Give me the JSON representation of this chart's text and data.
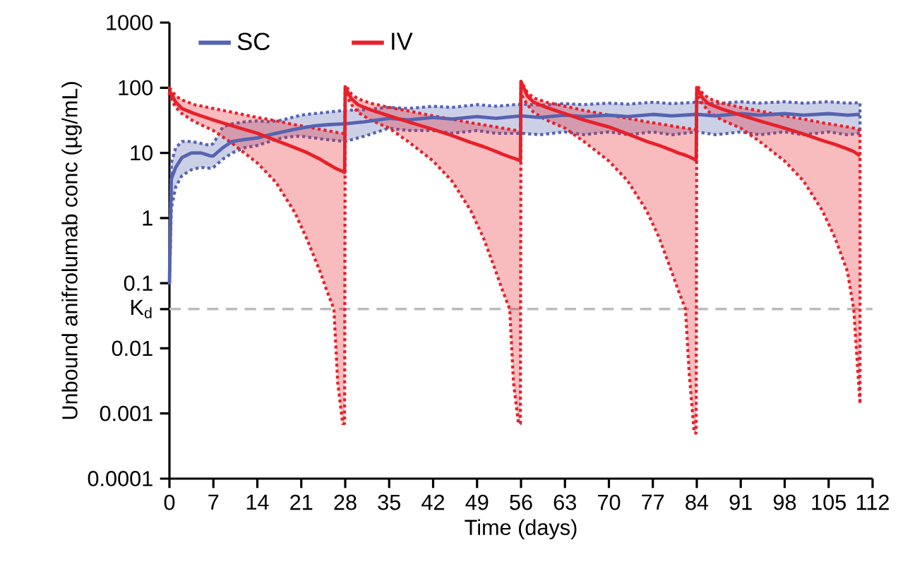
{
  "chart_data": {
    "type": "line",
    "xlabel": "Time (days)",
    "ylabel": "Unbound anifrolumab conc (µg/mL)",
    "xlim": [
      0,
      112
    ],
    "xticks": [
      0,
      7,
      14,
      21,
      28,
      35,
      42,
      49,
      56,
      63,
      70,
      77,
      84,
      91,
      98,
      105,
      112
    ],
    "ylim": [
      0.0001,
      1000
    ],
    "yticks": [
      0.0001,
      0.001,
      0.01,
      {
        "value": 0.04,
        "label": "K$_{d}$"
      },
      0.1,
      1,
      10,
      100,
      1000
    ],
    "log": "y",
    "grid": false,
    "legend": "top left",
    "marker": "none",
    "line_style": "solid",
    "ref_lines": [
      {
        "axis": "y",
        "value": 0.04,
        "color": "#bbbbbb",
        "line_style": "dashed"
      }
    ],
    "series": [
      {
        "name": "SC",
        "color": "#5663b0",
        "x": [
          0,
          0.3,
          1,
          2,
          3.5,
          5,
          6.5,
          7,
          8.5,
          10,
          12,
          14,
          16,
          18,
          20,
          21,
          23,
          25,
          28,
          31,
          35,
          38,
          42,
          45,
          49,
          52,
          56,
          59,
          63,
          66,
          70,
          73,
          77,
          80,
          84,
          87,
          91,
          94,
          98,
          101,
          105,
          108,
          110
        ],
        "values": [
          0.1,
          4,
          6,
          8.5,
          10,
          10,
          9,
          9,
          12,
          15,
          16,
          17,
          19,
          21,
          23,
          24,
          26,
          27,
          28,
          30,
          34,
          32,
          35,
          33,
          36,
          34,
          37,
          35,
          38,
          36,
          38,
          36,
          39,
          37,
          39,
          37,
          40,
          38,
          40,
          38,
          40,
          38,
          39
        ],
        "lower": [
          0.1,
          1.4,
          3,
          4.5,
          5.5,
          6,
          5.8,
          6,
          8,
          10,
          12,
          13,
          15,
          17,
          18,
          18,
          17,
          16,
          15,
          18,
          24,
          22,
          22,
          20,
          22,
          20,
          20,
          19,
          21,
          19,
          21,
          19,
          21,
          19,
          21,
          19,
          21,
          19,
          21,
          19,
          21,
          19,
          20
        ],
        "upper": [
          0.1,
          7,
          12,
          15,
          15,
          14,
          13,
          14,
          25,
          28,
          30,
          31,
          30,
          32,
          36,
          38,
          40,
          42,
          45,
          46,
          50,
          48,
          52,
          50,
          55,
          52,
          56,
          54,
          57,
          55,
          58,
          56,
          60,
          57,
          60,
          57,
          61,
          58,
          61,
          58,
          61,
          58,
          59
        ]
      },
      {
        "name": "IV",
        "color": "#e8202a",
        "x": [
          0,
          1,
          2,
          4,
          7,
          10,
          14,
          17,
          20,
          22,
          24,
          25,
          26.2,
          26.8,
          27.6,
          27.9,
          28,
          29,
          30,
          32,
          35,
          38,
          42,
          45,
          48,
          50,
          52,
          53,
          54.2,
          54.8,
          55.6,
          55.9,
          56,
          57,
          58,
          60,
          63,
          66,
          70,
          73,
          76,
          78,
          80,
          81,
          82.2,
          82.8,
          83.6,
          83.9,
          84,
          85,
          86,
          88,
          91,
          94,
          98,
          101,
          104,
          106,
          108,
          109,
          110
        ],
        "values": [
          90,
          60,
          48,
          40,
          32,
          26,
          20,
          15.5,
          12,
          10,
          8,
          7,
          6,
          5.6,
          5.2,
          5.0,
          100,
          68,
          55,
          46,
          37,
          30,
          23,
          18.5,
          14.5,
          12.5,
          10.5,
          9.6,
          8.7,
          8.3,
          7.8,
          7.6,
          125,
          75,
          60,
          50,
          40,
          32,
          25,
          19.5,
          15,
          13,
          11,
          10,
          9.2,
          8.7,
          8.0,
          7.7,
          100,
          68,
          56,
          47,
          38,
          31,
          24,
          19.5,
          15.5,
          13.5,
          11.5,
          10.5,
          9
        ],
        "lower": [
          75,
          50,
          40,
          30,
          22,
          14,
          7,
          3.5,
          1.2,
          0.45,
          0.15,
          0.08,
          0.04,
          0.003,
          0.0007,
          0.0007,
          80,
          55,
          42,
          32,
          24,
          15,
          7.5,
          3.7,
          1.3,
          0.5,
          0.15,
          0.08,
          0.04,
          0.003,
          0.0007,
          0.0007,
          80,
          55,
          42,
          32,
          24,
          15,
          7.5,
          3.7,
          1.3,
          0.5,
          0.15,
          0.08,
          0.04,
          0.004,
          0.0005,
          0.0005,
          80,
          55,
          42,
          32,
          24,
          15,
          7.5,
          3.7,
          1.3,
          0.5,
          0.15,
          0.04,
          0.0014
        ],
        "upper": [
          100,
          75,
          65,
          55,
          48,
          42,
          35,
          31,
          27,
          25,
          23,
          22,
          21,
          20.5,
          20,
          20,
          110,
          80,
          68,
          58,
          50,
          44,
          37,
          33,
          29,
          27,
          25,
          24,
          23,
          22.5,
          22,
          22,
          125,
          85,
          70,
          60,
          52,
          45,
          38,
          34,
          30,
          28,
          26,
          25,
          24,
          23.5,
          23,
          23,
          110,
          80,
          68,
          58,
          50,
          44,
          37,
          33,
          29,
          27,
          25,
          24,
          22
        ]
      }
    ]
  }
}
